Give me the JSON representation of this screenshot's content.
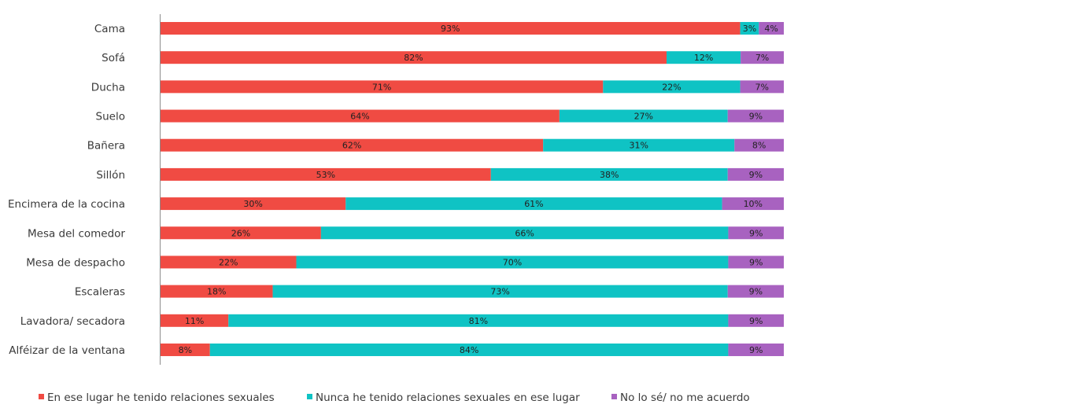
{
  "chart_data": {
    "type": "bar",
    "orientation": "horizontal",
    "stacked": true,
    "categories": [
      "Cama",
      "Sofá",
      "Ducha",
      "Suelo",
      "Bañera",
      "Sillón",
      "Encimera de la cocina",
      "Mesa del comedor",
      "Mesa de despacho",
      "Escaleras",
      "Lavadora/ secadora",
      "Alféizar de la ventana"
    ],
    "series": [
      {
        "name": "En ese lugar he tenido relaciones sexuales",
        "color": "#f04b43",
        "values": [
          93,
          82,
          71,
          64,
          62,
          53,
          30,
          26,
          22,
          18,
          11,
          8
        ]
      },
      {
        "name": "Nunca he tenido relaciones sexuales en ese lugar",
        "color": "#0fc3c4",
        "values": [
          3,
          12,
          22,
          27,
          31,
          38,
          61,
          66,
          70,
          73,
          81,
          84
        ]
      },
      {
        "name": "No lo sé/ no me acuerdo",
        "color": "#a862c0",
        "values": [
          4,
          7,
          7,
          9,
          8,
          9,
          10,
          9,
          9,
          9,
          9,
          9
        ]
      }
    ],
    "value_suffix": "%",
    "xlim": [
      0,
      100
    ],
    "grid": false,
    "legend": "bottom"
  }
}
